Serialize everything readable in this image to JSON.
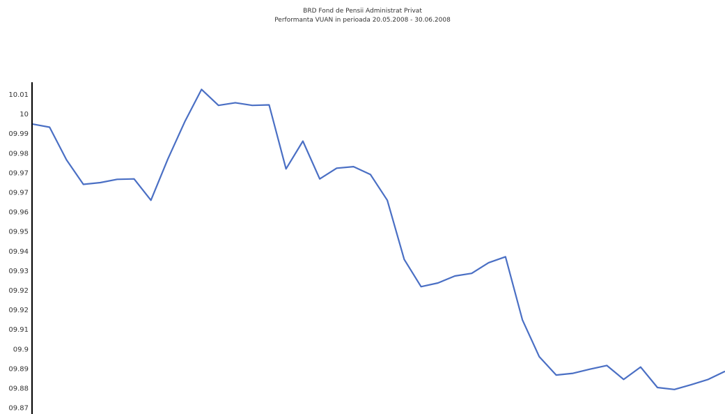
{
  "chart_data": {
    "type": "line",
    "title": "BRD Fond de Pensii Administrat Privat",
    "subtitle": "Performanta VUAN in perioada 20.05.2008 - 30.06.2008",
    "xlabel": "",
    "ylabel": "",
    "y_tick_labels": [
      "10.01",
      "10",
      "09.99",
      "09.98",
      "09.97",
      "09.97",
      "09.96",
      "09.95",
      "09.94",
      "09.93",
      "09.92",
      "09.92",
      "09.91",
      "09.9",
      "09.89",
      "09.88",
      "09.87"
    ],
    "ylim": [
      9.8686,
      10.0186
    ],
    "grid": false,
    "legend": "none",
    "color": "#4a6fc4",
    "series": [
      {
        "values": [
          10.0,
          9.9986,
          9.9836,
          9.9724,
          9.9732,
          9.9747,
          9.9749,
          9.9651,
          9.984,
          10.001,
          10.0159,
          10.0086,
          10.0098,
          10.0086,
          10.0088,
          9.9795,
          9.9922,
          9.9749,
          9.9798,
          9.9805,
          9.9769,
          9.9651,
          9.938,
          9.9255,
          9.9272,
          9.9304,
          9.9316,
          9.9365,
          9.9392,
          9.9103,
          9.8934,
          9.885,
          9.8858,
          9.8877,
          9.8894,
          9.883,
          9.8887,
          9.8793,
          9.8784,
          9.8806,
          9.883,
          9.8867
        ]
      }
    ]
  }
}
